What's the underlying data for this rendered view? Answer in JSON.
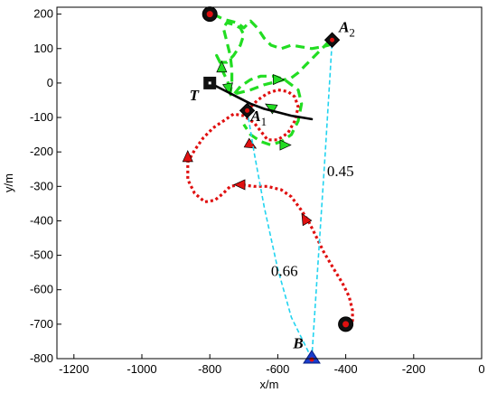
{
  "chart_data": {
    "type": "line",
    "xlabel": "x/m",
    "ylabel": "y/m",
    "xlim": [
      -1250,
      0
    ],
    "ylim": [
      -800,
      220
    ],
    "xticks": [
      -1200,
      -1000,
      -800,
      -600,
      -400,
      -200,
      0
    ],
    "yticks": [
      200,
      100,
      0,
      -100,
      -200,
      -300,
      -400,
      -500,
      -600,
      -700,
      -800
    ],
    "grid": false,
    "series": [
      {
        "style": "dashed",
        "color": "#22dd22",
        "points": [
          [
            -790,
            200
          ],
          [
            -760,
            185
          ],
          [
            -720,
            175
          ],
          [
            -700,
            160
          ],
          [
            -680,
            180
          ],
          [
            -660,
            160
          ],
          [
            -640,
            130
          ],
          [
            -620,
            110
          ],
          [
            -590,
            100
          ],
          [
            -560,
            110
          ],
          [
            -530,
            105
          ],
          [
            -500,
            100
          ],
          [
            -470,
            105
          ],
          [
            -450,
            110
          ],
          [
            -440,
            125
          ],
          [
            -450,
            120
          ],
          [
            -470,
            100
          ],
          [
            -500,
            70
          ],
          [
            -520,
            50
          ],
          [
            -540,
            30
          ],
          [
            -560,
            15
          ],
          [
            -600,
            5
          ],
          [
            -640,
            -5
          ],
          [
            -680,
            -20
          ],
          [
            -720,
            -30
          ],
          [
            -740,
            -15
          ],
          [
            -750,
            10
          ],
          [
            -760,
            30
          ],
          [
            -770,
            60
          ],
          [
            -780,
            80
          ],
          [
            -770,
            60
          ],
          [
            -750,
            60
          ],
          [
            -730,
            80
          ],
          [
            -710,
            110
          ],
          [
            -700,
            140
          ],
          [
            -710,
            160
          ],
          [
            -730,
            170
          ],
          [
            -750,
            175
          ],
          [
            -760,
            160
          ],
          [
            -750,
            120
          ],
          [
            -740,
            80
          ],
          [
            -735,
            40
          ],
          [
            -735,
            0
          ],
          [
            -740,
            -30
          ],
          [
            -735,
            -40
          ],
          [
            -710,
            -10
          ],
          [
            -680,
            10
          ],
          [
            -650,
            20
          ],
          [
            -610,
            20
          ],
          [
            -580,
            10
          ],
          [
            -560,
            -5
          ],
          [
            -540,
            -20
          ],
          [
            -530,
            -60
          ],
          [
            -540,
            -110
          ],
          [
            -560,
            -150
          ],
          [
            -590,
            -170
          ],
          [
            -620,
            -180
          ],
          [
            -650,
            -170
          ],
          [
            -680,
            -150
          ],
          [
            -700,
            -120
          ]
        ],
        "arrows": [
          [
            -765,
            45,
            90
          ],
          [
            -745,
            -15,
            -80
          ],
          [
            -620,
            -70,
            150
          ],
          [
            -600,
            10,
            0
          ],
          [
            -580,
            -180,
            0
          ]
        ]
      },
      {
        "style": "dotted",
        "color": "#e01010",
        "points": [
          [
            -690,
            -80
          ],
          [
            -660,
            -50
          ],
          [
            -630,
            -30
          ],
          [
            -600,
            -20
          ],
          [
            -570,
            -25
          ],
          [
            -550,
            -40
          ],
          [
            -540,
            -70
          ],
          [
            -550,
            -110
          ],
          [
            -570,
            -145
          ],
          [
            -600,
            -165
          ],
          [
            -630,
            -165
          ],
          [
            -650,
            -140
          ],
          [
            -670,
            -115
          ],
          [
            -700,
            -95
          ],
          [
            -730,
            -90
          ],
          [
            -760,
            -110
          ],
          [
            -790,
            -130
          ],
          [
            -820,
            -160
          ],
          [
            -845,
            -195
          ],
          [
            -865,
            -230
          ],
          [
            -865,
            -280
          ],
          [
            -845,
            -320
          ],
          [
            -815,
            -345
          ],
          [
            -785,
            -340
          ],
          [
            -760,
            -320
          ],
          [
            -740,
            -300
          ],
          [
            -710,
            -295
          ],
          [
            -670,
            -300
          ],
          [
            -630,
            -300
          ],
          [
            -590,
            -310
          ],
          [
            -560,
            -330
          ],
          [
            -530,
            -370
          ],
          [
            -510,
            -400
          ],
          [
            -490,
            -440
          ],
          [
            -465,
            -490
          ],
          [
            -435,
            -540
          ],
          [
            -410,
            -580
          ],
          [
            -390,
            -620
          ],
          [
            -380,
            -660
          ],
          [
            -380,
            -690
          ],
          [
            -390,
            -690
          ]
        ],
        "arrows": [
          [
            -680,
            -180,
            -30
          ],
          [
            -865,
            -215,
            90
          ],
          [
            -710,
            -295,
            180
          ],
          [
            -520,
            -395,
            120
          ]
        ]
      },
      {
        "style": "solid",
        "color": "#000000",
        "points": [
          [
            -800,
            0
          ],
          [
            -760,
            -20
          ],
          [
            -720,
            -40
          ],
          [
            -680,
            -60
          ],
          [
            -640,
            -75
          ],
          [
            -600,
            -85
          ],
          [
            -560,
            -95
          ],
          [
            -500,
            -105
          ]
        ]
      },
      {
        "style": "dashed",
        "color": "#22d4f0",
        "points": [
          [
            -690,
            -80
          ],
          [
            -670,
            -200
          ],
          [
            -640,
            -360
          ],
          [
            -600,
            -540
          ],
          [
            -560,
            -680
          ],
          [
            -500,
            -800
          ]
        ]
      },
      {
        "style": "dashed",
        "color": "#22d4f0",
        "points": [
          [
            -500,
            -800
          ],
          [
            -480,
            -500
          ],
          [
            -460,
            -200
          ],
          [
            -440,
            125
          ]
        ]
      }
    ],
    "markers": [
      {
        "kind": "circle",
        "x": -800,
        "y": 200
      },
      {
        "kind": "circle",
        "x": -400,
        "y": -700
      },
      {
        "kind": "diamond",
        "x": -440,
        "y": 125
      },
      {
        "kind": "diamond",
        "x": -690,
        "y": -80
      },
      {
        "kind": "square",
        "x": -800,
        "y": 0
      },
      {
        "kind": "triangle",
        "x": -500,
        "y": -800
      }
    ],
    "annotations": [
      {
        "id": "A2",
        "text": "A",
        "sub": "2",
        "x": -420,
        "y": 148
      },
      {
        "id": "A1",
        "text": "A",
        "sub": "1",
        "x": -680,
        "y": -110
      },
      {
        "id": "T",
        "text": "T",
        "x": -860,
        "y": -50
      },
      {
        "id": "B",
        "text": "B",
        "x": -555,
        "y": -770
      },
      {
        "id": "d045",
        "text": "0.45",
        "x": -455,
        "y": -270
      },
      {
        "id": "d066",
        "text": "0.66",
        "x": -620,
        "y": -560
      }
    ]
  }
}
